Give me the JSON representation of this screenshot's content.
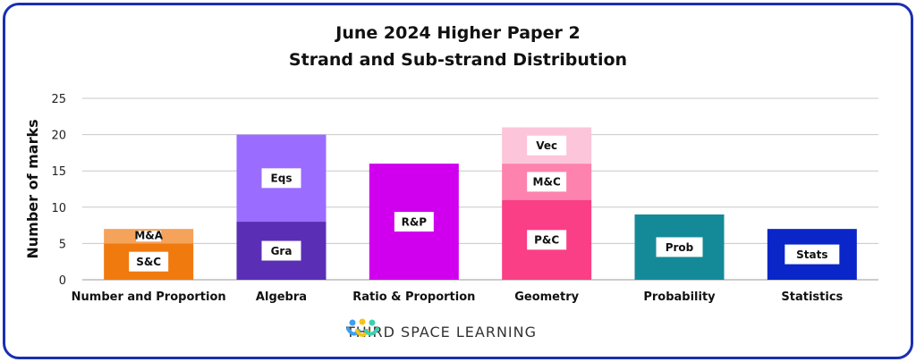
{
  "chart_data": {
    "type": "bar",
    "stacked": true,
    "title": "June 2024 Higher Paper 2",
    "subtitle": "Strand and Sub-strand Distribution",
    "ylabel": "Number of marks",
    "xlabel": "",
    "ylim": [
      0,
      25
    ],
    "yticks": [
      0,
      5,
      10,
      15,
      20,
      25
    ],
    "grid": true,
    "categories": [
      "Number and Proportion",
      "Algebra",
      "Ratio & Proportion",
      "Geometry",
      "Probability",
      "Statistics"
    ],
    "bars": [
      {
        "category": "Number and Proportion",
        "segments": [
          {
            "label": "S&C",
            "value": 5,
            "color": "#f07a0e"
          },
          {
            "label": "M&A",
            "value": 2,
            "color": "#f5a25a"
          }
        ]
      },
      {
        "category": "Algebra",
        "segments": [
          {
            "label": "Gra",
            "value": 8,
            "color": "#5a2fb5"
          },
          {
            "label": "Eqs",
            "value": 12,
            "color": "#9a6cff"
          }
        ]
      },
      {
        "category": "Ratio & Proportion",
        "segments": [
          {
            "label": "R&P",
            "value": 16,
            "color": "#d000ee"
          }
        ]
      },
      {
        "category": "Geometry",
        "segments": [
          {
            "label": "P&C",
            "value": 11,
            "color": "#fa3f86"
          },
          {
            "label": "M&C",
            "value": 5,
            "color": "#fd82ad"
          },
          {
            "label": "Vec",
            "value": 5,
            "color": "#fcc5d9"
          }
        ]
      },
      {
        "category": "Probability",
        "segments": [
          {
            "label": "Prob",
            "value": 9,
            "color": "#148a98"
          }
        ]
      },
      {
        "category": "Statistics",
        "segments": [
          {
            "label": "Stats",
            "value": 7,
            "color": "#0a26c8"
          }
        ]
      }
    ]
  },
  "logo": {
    "text": "THIRD SPACE LEARNING"
  },
  "colors": {
    "frame": "#1a2fb0",
    "grid": "#c8c8c8"
  }
}
